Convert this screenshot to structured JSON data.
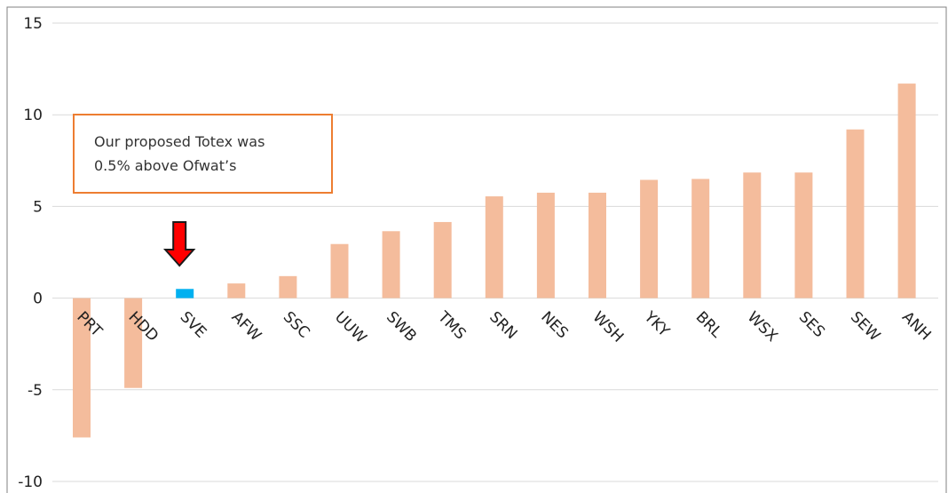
{
  "chart_data": {
    "type": "bar",
    "categories": [
      "PRT",
      "HDD",
      "SVE",
      "AFW",
      "SSC",
      "UUW",
      "SWB",
      "TMS",
      "SRN",
      "NES",
      "WSH",
      "YKY",
      "BRL",
      "WSX",
      "SES",
      "SEW",
      "ANH"
    ],
    "values": [
      -7.6,
      -4.9,
      0.5,
      0.8,
      1.2,
      2.95,
      3.65,
      4.15,
      5.55,
      5.75,
      5.75,
      6.45,
      6.5,
      6.85,
      6.85,
      9.2,
      11.7
    ],
    "highlight": "SVE",
    "ylim": [
      -10,
      15
    ],
    "yticks": [
      15,
      10,
      5,
      0,
      -5,
      -10
    ],
    "ytick_labels": [
      "15",
      "10",
      "5",
      "0",
      "-5",
      "-10"
    ],
    "grid": true,
    "title": "",
    "xlabel": "",
    "ylabel": "",
    "colors": {
      "bar": "#F4BC9C",
      "highlight_bar": "#00B0F0",
      "arrow_fill": "#FF0000",
      "arrow_stroke": "#1a1a1a",
      "annotation_border": "#ED7D31",
      "grid": "#D9D9D9",
      "frame": "#808080"
    },
    "annotations": [
      {
        "text_lines": [
          "Our proposed Totex was",
          "0.5% above Ofwat’s"
        ]
      },
      {
        "type": "arrow",
        "icon": "down-arrow-icon",
        "target": "SVE"
      }
    ]
  }
}
